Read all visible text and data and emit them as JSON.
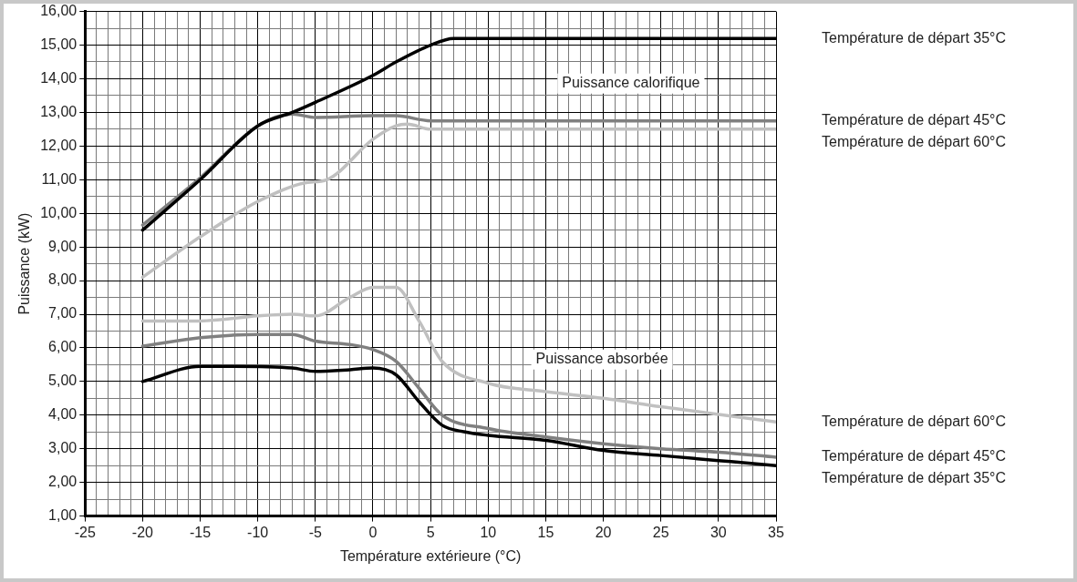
{
  "chart_data": {
    "type": "line",
    "xlabel": "Température extérieure (°C)",
    "ylabel": "Puissance (kW)",
    "xlim": [
      -25,
      35
    ],
    "ylim": [
      1,
      16
    ],
    "xticks": [
      -25,
      {
        "value": -24,
        "label": null
      },
      {
        "value": -23,
        "label": null
      },
      {
        "value": -22,
        "label": null
      },
      {
        "value": -21,
        "label": null
      },
      -20,
      {
        "value": -19,
        "label": null
      },
      {
        "value": -18,
        "label": null
      },
      {
        "value": -17,
        "label": null
      },
      {
        "value": -16,
        "label": null
      },
      -15,
      {
        "value": -14,
        "label": null
      },
      {
        "value": -13,
        "label": null
      },
      {
        "value": -12,
        "label": null
      },
      {
        "value": -11,
        "label": null
      },
      -10,
      {
        "value": -9,
        "label": null
      },
      {
        "value": -8,
        "label": null
      },
      {
        "value": -7,
        "label": null
      },
      {
        "value": -6,
        "label": null
      },
      -5,
      {
        "value": -4,
        "label": null
      },
      {
        "value": -3,
        "label": null
      },
      {
        "value": -2,
        "label": null
      },
      {
        "value": -1,
        "label": null
      },
      0,
      {
        "value": 1,
        "label": null
      },
      {
        "value": 2,
        "label": null
      },
      {
        "value": 3,
        "label": null
      },
      {
        "value": 4,
        "label": null
      },
      5,
      {
        "value": 6,
        "label": null
      },
      {
        "value": 7,
        "label": null
      },
      {
        "value": 8,
        "label": null
      },
      {
        "value": 9,
        "label": null
      },
      10,
      {
        "value": 11,
        "label": null
      },
      {
        "value": 12,
        "label": null
      },
      {
        "value": 13,
        "label": null
      },
      {
        "value": 14,
        "label": null
      },
      15,
      {
        "value": 16,
        "label": null
      },
      {
        "value": 17,
        "label": null
      },
      {
        "value": 18,
        "label": null
      },
      {
        "value": 19,
        "label": null
      },
      20,
      {
        "value": 21,
        "label": null
      },
      {
        "value": 22,
        "label": null
      },
      {
        "value": 23,
        "label": null
      },
      {
        "value": 24,
        "label": null
      },
      25,
      {
        "value": 26,
        "label": null
      },
      {
        "value": 27,
        "label": null
      },
      {
        "value": 28,
        "label": null
      },
      {
        "value": 29,
        "label": null
      },
      30,
      {
        "value": 31,
        "label": null
      },
      {
        "value": 32,
        "label": null
      },
      {
        "value": 33,
        "label": null
      },
      {
        "value": 34,
        "label": null
      },
      35
    ],
    "yticks": [
      {
        "value": 1,
        "label": "1,00"
      },
      {
        "value": 1.5,
        "label": null
      },
      {
        "value": 2,
        "label": "2,00"
      },
      {
        "value": 2.5,
        "label": null
      },
      {
        "value": 3,
        "label": "3,00"
      },
      {
        "value": 3.5,
        "label": null
      },
      {
        "value": 4,
        "label": "4,00"
      },
      {
        "value": 4.5,
        "label": null
      },
      {
        "value": 5,
        "label": "5,00"
      },
      {
        "value": 5.5,
        "label": null
      },
      {
        "value": 6,
        "label": "6,00"
      },
      {
        "value": 6.5,
        "label": null
      },
      {
        "value": 7,
        "label": "7,00"
      },
      {
        "value": 7.5,
        "label": null
      },
      {
        "value": 8,
        "label": "8,00"
      },
      {
        "value": 8.5,
        "label": null
      },
      {
        "value": 9,
        "label": "9,00"
      },
      {
        "value": 9.5,
        "label": null
      },
      {
        "value": 10,
        "label": "10,00"
      },
      {
        "value": 10.5,
        "label": null
      },
      {
        "value": 11,
        "label": "11,00"
      },
      {
        "value": 11.5,
        "label": null
      },
      {
        "value": 12,
        "label": "12,00"
      },
      {
        "value": 12.5,
        "label": null
      },
      {
        "value": 13,
        "label": "13,00"
      },
      {
        "value": 13.5,
        "label": null
      },
      {
        "value": 14,
        "label": "14,00"
      },
      {
        "value": 14.5,
        "label": null
      },
      {
        "value": 15,
        "label": "15,00"
      },
      {
        "value": 15.5,
        "label": null
      },
      {
        "value": 16,
        "label": "16,00"
      }
    ],
    "grid": true,
    "legend": false,
    "marker": "none",
    "line_style": "solid",
    "annotations": [
      "Puissance calorifique",
      "Puissance absorbée"
    ],
    "series": [
      {
        "name": "Température de départ 35°C",
        "color": "#000000",
        "x": [
          -20,
          -15,
          -10,
          -7,
          -5,
          0,
          2,
          5,
          7,
          35
        ],
        "values": [
          9.5,
          11.0,
          12.6,
          13.0,
          13.3,
          14.1,
          14.5,
          15.0,
          15.2,
          15.2
        ]
      },
      {
        "name": "Température de départ 45°C",
        "color": "#808080",
        "x": [
          -20,
          -15,
          -10,
          -7,
          -5,
          0,
          2,
          5,
          7,
          35
        ],
        "values": [
          9.65,
          11.05,
          12.6,
          12.95,
          12.85,
          12.9,
          12.9,
          12.75,
          12.75,
          12.75
        ]
      },
      {
        "name": "Température de départ 60°C",
        "color": "#c0c0c0",
        "x": [
          -20,
          -15,
          -10,
          -6,
          -4,
          0,
          2,
          3,
          5,
          7,
          35
        ],
        "values": [
          8.1,
          9.3,
          10.35,
          10.9,
          11.0,
          12.2,
          12.6,
          12.65,
          12.5,
          12.5,
          12.5
        ]
      },
      {
        "name": "Température de départ 60°C",
        "color": "#c0c0c0",
        "x": [
          -20,
          -15,
          -10,
          -7,
          -5,
          -2,
          0,
          2,
          4,
          6,
          10,
          15,
          20,
          25,
          35
        ],
        "values": [
          6.8,
          6.8,
          6.95,
          7.0,
          6.95,
          7.5,
          7.8,
          7.8,
          6.8,
          5.6,
          4.95,
          4.7,
          4.5,
          4.25,
          3.8
        ]
      },
      {
        "name": "Température de départ 45°C",
        "color": "#808080",
        "x": [
          -20,
          -15,
          -10,
          -7,
          -5,
          -2,
          0,
          2,
          4,
          6,
          10,
          15,
          20,
          25,
          30,
          35
        ],
        "values": [
          6.05,
          6.3,
          6.4,
          6.4,
          6.2,
          6.1,
          5.95,
          5.6,
          4.8,
          4.0,
          3.6,
          3.35,
          3.15,
          3.0,
          2.9,
          2.75
        ]
      },
      {
        "name": "Température de départ 35°C",
        "color": "#000000",
        "x": [
          -20,
          -15,
          -12,
          -7,
          -5,
          -2,
          0,
          2,
          4,
          6,
          8,
          10,
          15,
          20,
          25,
          30,
          35
        ],
        "values": [
          5.0,
          5.45,
          5.45,
          5.4,
          5.3,
          5.35,
          5.4,
          5.2,
          4.4,
          3.7,
          3.5,
          3.4,
          3.25,
          2.95,
          2.8,
          2.65,
          2.5
        ]
      }
    ]
  }
}
